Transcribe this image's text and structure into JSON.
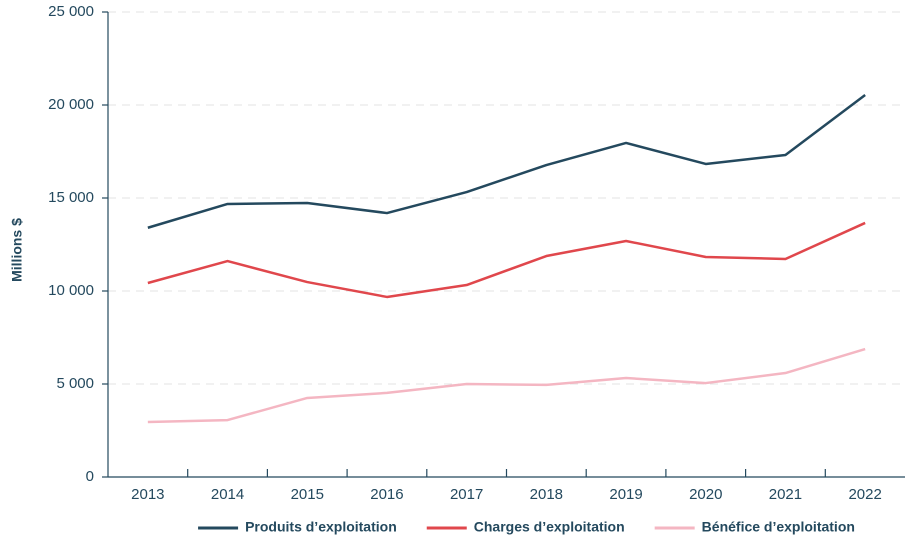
{
  "chart_data": {
    "type": "line",
    "y_label": "Millions $",
    "categories": [
      "2013",
      "2014",
      "2015",
      "2016",
      "2017",
      "2018",
      "2019",
      "2020",
      "2021",
      "2022"
    ],
    "series": [
      {
        "name": "Produits d’exploitation",
        "color": "#24495e",
        "values": [
          13400,
          14680,
          14730,
          14190,
          15320,
          16770,
          17960,
          16830,
          17310,
          20540
        ]
      },
      {
        "name": "Charges d’exploitation",
        "color": "#e0474c",
        "values": [
          10430,
          11610,
          10480,
          9680,
          10320,
          11880,
          12690,
          11830,
          11720,
          13660
        ]
      },
      {
        "name": "Bénéfice d’exploitation",
        "color": "#f4b6c2",
        "values": [
          2960,
          3060,
          4250,
          4520,
          5000,
          4950,
          5320,
          5050,
          5590,
          6880
        ]
      }
    ],
    "ylim": [
      0,
      25000
    ],
    "yticks": [
      0,
      {
        "value": 5000,
        "label": "5 000"
      },
      {
        "value": 10000,
        "label": "10 000"
      },
      {
        "value": 15000,
        "label": "15 000"
      },
      {
        "value": 20000,
        "label": "20 000"
      },
      {
        "value": 25000,
        "label": "25 000"
      }
    ],
    "grid": true,
    "legend": "bottom"
  }
}
